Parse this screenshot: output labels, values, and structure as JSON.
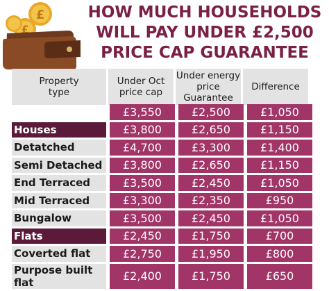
{
  "title": {
    "line1": "HOW MUCH HOUSEHOLDS",
    "line2": "WILL PAY UNDER £2,500",
    "line3": "PRICE CAP GUARANTEE"
  },
  "headers": {
    "property_type_l1": "Property",
    "property_type_l2": "type",
    "col1_l1": "Under Oct",
    "col1_l2": "price cap",
    "col2_l1": "Under energy",
    "col2_l2": "price Guarantee",
    "col3": "Difference"
  },
  "rows": [
    {
      "label": "",
      "kind": "empty",
      "v1": "£3,550",
      "v2": "£2,500",
      "v3": "£1,050"
    },
    {
      "label": "Houses",
      "kind": "cat",
      "v1": "£3,800",
      "v2": "£2,650",
      "v3": "£1,150"
    },
    {
      "label": "Detatched",
      "kind": "sub",
      "v1": "£4,700",
      "v2": "£3,300",
      "v3": "£1,400"
    },
    {
      "label": "Semi Detached",
      "kind": "sub",
      "v1": "£3,800",
      "v2": "£2,650",
      "v3": "£1,150"
    },
    {
      "label": "End Terraced",
      "kind": "sub",
      "v1": "£3,500",
      "v2": "£2,450",
      "v3": "£1,050"
    },
    {
      "label": "Mid Terraced",
      "kind": "sub",
      "v1": "£3,300",
      "v2": "£2,350",
      "v3": "£950"
    },
    {
      "label": "Bungalow",
      "kind": "sub",
      "v1": "£3,500",
      "v2": "£2,450",
      "v3": "£1,050"
    },
    {
      "label": "Flats",
      "kind": "cat",
      "v1": "£2,450",
      "v2": "£1,750",
      "v3": "£700"
    },
    {
      "label": "Coverted flat",
      "kind": "sub",
      "v1": "£2,750",
      "v2": "£1,950",
      "v3": "£800"
    },
    {
      "label": "Purpose built flat",
      "kind": "sub",
      "v1": "£2,400",
      "v2": "£1,750",
      "v3": "£650"
    }
  ],
  "colors": {
    "title": "#7a1f45",
    "category_bg": "#5c1a3a",
    "value_bg": "#a23568",
    "header_bg": "#e3e3e3"
  },
  "icons": {
    "wallet": "wallet-with-pound-coins-icon"
  }
}
